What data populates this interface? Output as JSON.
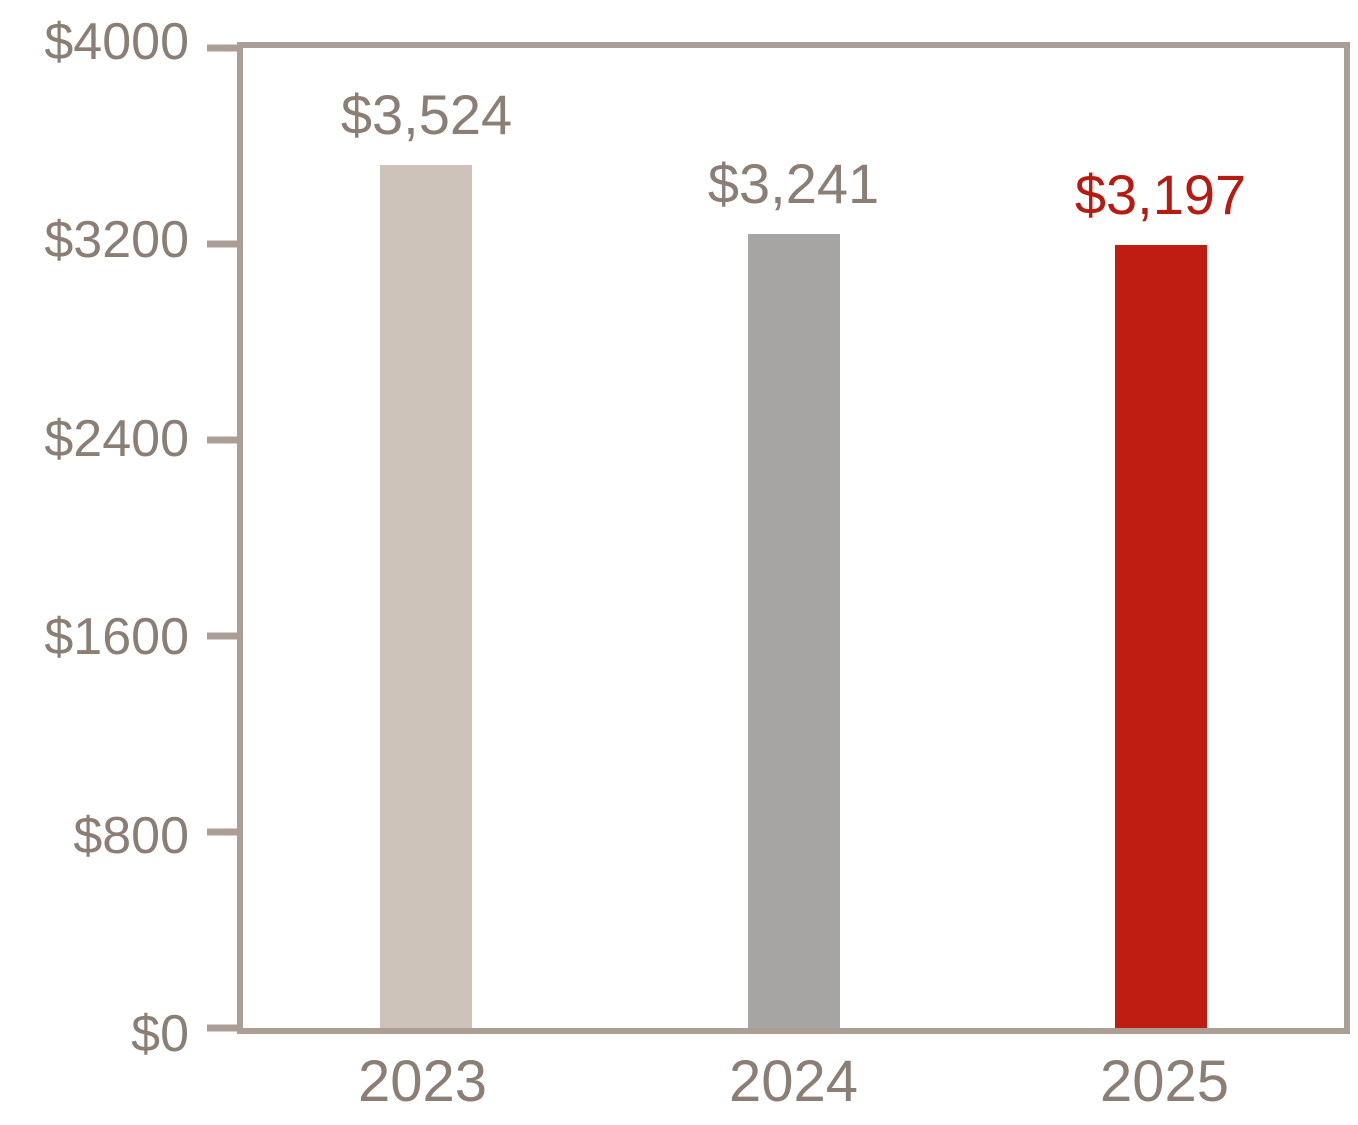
{
  "chart_data": {
    "type": "bar",
    "title": "",
    "xlabel": "",
    "ylabel": "",
    "categories": [
      "2023",
      "2024",
      "2025"
    ],
    "values": [
      3524,
      3241,
      3197
    ],
    "value_labels": [
      "$3,524",
      "$3,241",
      "$3,197"
    ],
    "bar_colors": [
      "#cec3ba",
      "#a6a5a3",
      "#bf1d11"
    ],
    "value_label_colors": [
      "#8b7e75",
      "#8b7e75",
      "#b51b10"
    ],
    "ylim": [
      0,
      4000
    ],
    "yticks": [
      0,
      800,
      1600,
      2400,
      3200,
      4000
    ],
    "ytick_labels": [
      "$0",
      "$800",
      "$1600",
      "$2400",
      "$3200",
      "$4000"
    ],
    "grid": false,
    "legend": null,
    "axis_color": "#ab9e95",
    "tick_label_color": "#8b7e75"
  }
}
